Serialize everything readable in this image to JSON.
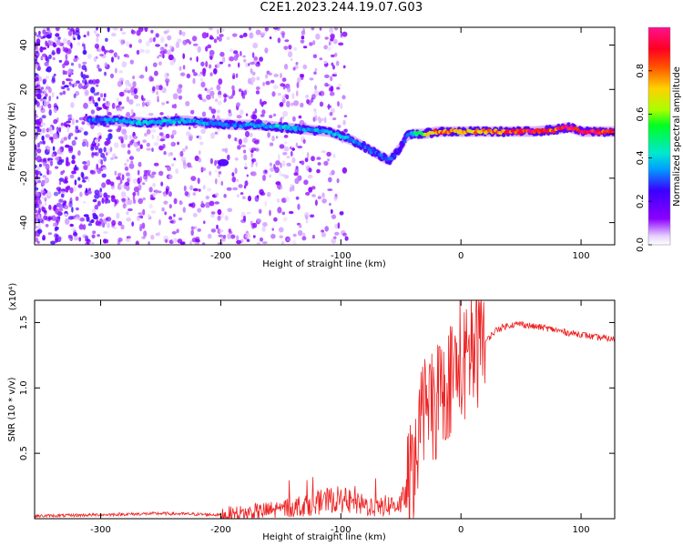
{
  "title": "C2E1.2023.244.19.07.G03",
  "colors": {
    "snr_line": "#ee2222",
    "axis": "#000000"
  },
  "chart_data": [
    {
      "type": "heatmap",
      "xlabel": "Height of straight line (km)",
      "ylabel": "Frequency (Hz)",
      "xlim": [
        -355,
        128
      ],
      "ylim": [
        -50,
        48
      ],
      "xticks": [
        -300,
        -200,
        -100,
        0,
        100
      ],
      "yticks": [
        -40,
        -20,
        0,
        20,
        40
      ],
      "grid": false,
      "colorbar": {
        "label": "Normalized spectral amplitude",
        "range": [
          0,
          1
        ],
        "ticks": [
          "0.0",
          "0.2",
          "0.4",
          "0.6",
          "0.8"
        ],
        "colormap": "rainbow-violet-to-magenta",
        "position": "right"
      },
      "ridge": {
        "x": [
          -310,
          -290,
          -260,
          -230,
          -210,
          -190,
          -170,
          -150,
          -130,
          -110,
          -90,
          -80,
          -70,
          -60,
          -50,
          -45,
          -40,
          -30,
          -20,
          -10,
          0,
          20,
          40,
          60,
          80,
          90,
          100,
          128
        ],
        "freq": [
          6,
          6,
          5,
          6,
          5,
          4,
          4,
          3,
          2,
          1,
          -3,
          -6,
          -9,
          -12,
          -6,
          -1,
          0,
          0,
          1,
          1,
          1,
          1,
          1,
          1,
          2,
          3,
          1,
          1
        ],
        "amplitude": [
          0.3,
          0.35,
          0.4,
          0.35,
          0.35,
          0.3,
          0.35,
          0.4,
          0.35,
          0.4,
          0.35,
          0.3,
          0.3,
          0.3,
          0.25,
          0.3,
          0.4,
          0.6,
          0.8,
          0.8,
          0.75,
          0.75,
          0.85,
          0.9,
          0.85,
          0.95,
          0.95,
          0.9
        ]
      },
      "annotations": [
        {
          "x": -198,
          "freq": -13,
          "note_type": "blob"
        }
      ]
    },
    {
      "type": "line",
      "xlabel": "Height of straight line (km)",
      "ylabel": "SNR (10 * v/v)",
      "y_multiplier_label": "(x10⁴)",
      "xlim": [
        -355,
        128
      ],
      "ylim": [
        0,
        1.67
      ],
      "xticks": [
        -300,
        -200,
        -100,
        0,
        100
      ],
      "yticks": [
        0.5,
        1.0,
        1.5
      ],
      "ytick_labels": [
        "0.5",
        "1.0",
        "1.5"
      ],
      "grid": false,
      "series": [
        {
          "color": "#ee2222",
          "x": [
            -355,
            -300,
            -250,
            -200,
            -180,
            -160,
            -140,
            -120,
            -110,
            -100,
            -90,
            -80,
            -70,
            -60,
            -50,
            -45,
            -40,
            -35,
            -30,
            -25,
            -20,
            -15,
            -10,
            -5,
            0,
            5,
            10,
            15,
            20,
            30,
            40,
            50,
            60,
            70,
            80,
            90,
            100,
            110,
            120,
            128
          ],
          "y": [
            0.02,
            0.03,
            0.04,
            0.03,
            0.04,
            0.06,
            0.09,
            0.12,
            0.14,
            0.15,
            0.12,
            0.1,
            0.09,
            0.1,
            0.12,
            0.2,
            0.35,
            0.6,
            0.85,
            0.8,
            0.9,
            1.0,
            1.05,
            1.15,
            1.1,
            1.2,
            1.25,
            1.3,
            1.35,
            1.45,
            1.48,
            1.49,
            1.47,
            1.46,
            1.44,
            1.42,
            1.41,
            1.39,
            1.38,
            1.37
          ]
        }
      ]
    }
  ]
}
